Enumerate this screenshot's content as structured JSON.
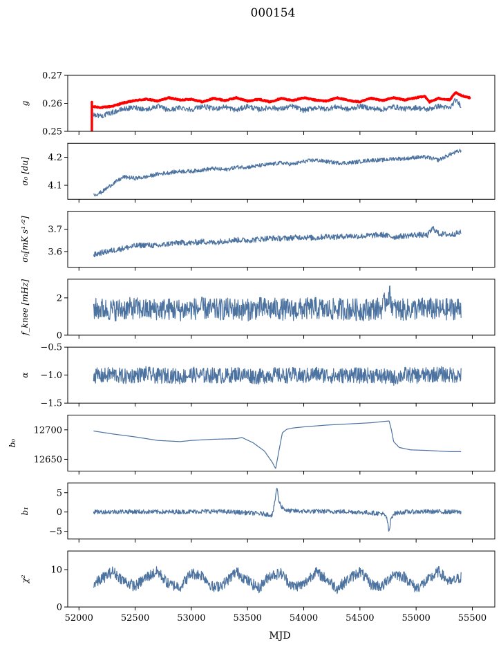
{
  "figure": {
    "title": "000154",
    "xlabel": "MJD",
    "series_color": "#4c72a0",
    "highlight_color": "#ff0000"
  },
  "chart_data": [
    {
      "type": "line",
      "ylabel": "g",
      "ylim": [
        0.25,
        0.27
      ],
      "yticks": [
        0.25,
        0.26,
        0.27
      ],
      "ytick_labels": [
        "0.25",
        "0.26",
        "0.27"
      ],
      "xlim": [
        51900,
        55700
      ],
      "show_x_tick_labels": false,
      "series": [
        {
          "color": "#ff0000",
          "style": "thick",
          "x": [
            52115,
            52130,
            52200,
            52300,
            52400,
            52500,
            52600,
            52700,
            52800,
            52900,
            53000,
            53100,
            53200,
            53300,
            53400,
            53500,
            53600,
            53700,
            53800,
            53900,
            54000,
            54100,
            54200,
            54300,
            54400,
            54500,
            54600,
            54700,
            54800,
            54900,
            55000,
            55080,
            55120,
            55200,
            55300,
            55350,
            55400,
            55480
          ],
          "y": [
            0.259,
            0.2588,
            0.2585,
            0.259,
            0.2602,
            0.261,
            0.2615,
            0.2608,
            0.262,
            0.2612,
            0.2615,
            0.2605,
            0.2618,
            0.261,
            0.262,
            0.2608,
            0.2615,
            0.2605,
            0.2618,
            0.261,
            0.262,
            0.2612,
            0.2608,
            0.262,
            0.261,
            0.2605,
            0.2618,
            0.261,
            0.262,
            0.2612,
            0.262,
            0.2625,
            0.2605,
            0.2618,
            0.2612,
            0.2638,
            0.2628,
            0.262
          ]
        },
        {
          "color": "#4c72a0",
          "x": [
            52130,
            52200,
            52300,
            52400,
            52500,
            52600,
            52700,
            52800,
            52900,
            53000,
            53100,
            53200,
            53300,
            53400,
            53500,
            53600,
            53700,
            53800,
            53900,
            54000,
            54100,
            54200,
            54300,
            54400,
            54500,
            54600,
            54700,
            54800,
            54900,
            55000,
            55100,
            55200,
            55300,
            55350,
            55400
          ],
          "y": [
            0.256,
            0.2555,
            0.2568,
            0.258,
            0.2585,
            0.2578,
            0.259,
            0.2575,
            0.2585,
            0.2578,
            0.259,
            0.258,
            0.2588,
            0.2575,
            0.259,
            0.2578,
            0.2585,
            0.258,
            0.259,
            0.2575,
            0.2585,
            0.258,
            0.2588,
            0.2578,
            0.259,
            0.2582,
            0.2578,
            0.2588,
            0.258,
            0.2585,
            0.2578,
            0.259,
            0.2582,
            0.2612,
            0.2592
          ]
        }
      ]
    },
    {
      "type": "line",
      "ylabel": "σ₀ [du]",
      "ylim": [
        4.05,
        4.25
      ],
      "yticks": [
        4.1,
        4.2
      ],
      "ytick_labels": [
        "4.1",
        "4.2"
      ],
      "xlim": [
        51900,
        55700
      ],
      "show_x_tick_labels": false,
      "series": [
        {
          "color": "#4c72a0",
          "x": [
            52130,
            52200,
            52300,
            52400,
            52500,
            52600,
            52700,
            52800,
            52900,
            53000,
            53100,
            53200,
            53300,
            53400,
            53500,
            53600,
            53700,
            53800,
            53900,
            54000,
            54100,
            54200,
            54300,
            54400,
            54500,
            54600,
            54700,
            54800,
            54900,
            55000,
            55100,
            55200,
            55300,
            55400
          ],
          "y": [
            4.065,
            4.075,
            4.105,
            4.13,
            4.125,
            4.13,
            4.14,
            4.145,
            4.15,
            4.15,
            4.155,
            4.16,
            4.155,
            4.165,
            4.165,
            4.17,
            4.175,
            4.18,
            4.175,
            4.185,
            4.19,
            4.185,
            4.18,
            4.18,
            4.185,
            4.19,
            4.19,
            4.195,
            4.195,
            4.2,
            4.2,
            4.19,
            4.21,
            4.225
          ]
        }
      ]
    },
    {
      "type": "line",
      "ylabel": "σ₀[mK s¹ᐟ²]",
      "ylim": [
        3.53,
        3.78
      ],
      "yticks": [
        3.6,
        3.7
      ],
      "ytick_labels": [
        "3.6",
        "3.7"
      ],
      "xlim": [
        51900,
        55700
      ],
      "show_x_tick_labels": false,
      "series": [
        {
          "color": "#4c72a0",
          "x": [
            52130,
            52200,
            52300,
            52400,
            52500,
            52600,
            52700,
            52800,
            52900,
            53000,
            53100,
            53200,
            53300,
            53400,
            53500,
            53600,
            53700,
            53800,
            53900,
            54000,
            54100,
            54200,
            54300,
            54400,
            54500,
            54600,
            54700,
            54800,
            54900,
            55000,
            55100,
            55150,
            55200,
            55300,
            55400
          ],
          "y": [
            3.585,
            3.595,
            3.605,
            3.615,
            3.625,
            3.63,
            3.625,
            3.635,
            3.64,
            3.638,
            3.645,
            3.64,
            3.648,
            3.652,
            3.65,
            3.655,
            3.66,
            3.658,
            3.662,
            3.665,
            3.66,
            3.668,
            3.665,
            3.67,
            3.668,
            3.672,
            3.675,
            3.665,
            3.67,
            3.675,
            3.672,
            3.705,
            3.68,
            3.675,
            3.685
          ]
        }
      ]
    },
    {
      "type": "line",
      "ylabel": "f_knee [mHz]",
      "ylim": [
        0,
        3
      ],
      "yticks": [
        0,
        2
      ],
      "ytick_labels": [
        "0",
        "2"
      ],
      "xlim": [
        51900,
        55700
      ],
      "show_x_tick_labels": false,
      "series": [
        {
          "color": "#4c72a0",
          "x": [
            52130,
            52200,
            52300,
            52400,
            52500,
            52600,
            52700,
            52800,
            52900,
            53000,
            53100,
            53200,
            53300,
            53400,
            53500,
            53600,
            53700,
            53800,
            53900,
            54000,
            54100,
            54200,
            54300,
            54400,
            54500,
            54600,
            54700,
            54760,
            54800,
            54900,
            55000,
            55100,
            55200,
            55300,
            55400
          ],
          "y": [
            1.4,
            1.4,
            1.35,
            1.4,
            1.45,
            1.35,
            1.4,
            1.4,
            1.35,
            1.4,
            1.45,
            1.35,
            1.4,
            1.4,
            1.35,
            1.45,
            1.4,
            1.4,
            1.35,
            1.4,
            1.45,
            1.35,
            1.4,
            1.4,
            1.35,
            1.4,
            1.45,
            2.2,
            1.4,
            1.35,
            1.4,
            1.45,
            1.35,
            1.4,
            1.45
          ]
        }
      ]
    },
    {
      "type": "line",
      "ylabel": "α",
      "ylim": [
        -1.5,
        -0.5
      ],
      "yticks": [
        -1.5,
        -1.0,
        -0.5
      ],
      "ytick_labels": [
        "−1.5",
        "−1.0",
        "−0.5"
      ],
      "xlim": [
        51900,
        55700
      ],
      "show_x_tick_labels": false,
      "series": [
        {
          "color": "#4c72a0",
          "x": [
            52130,
            52200,
            52300,
            52400,
            52500,
            52600,
            52700,
            52800,
            52900,
            53000,
            53100,
            53200,
            53300,
            53400,
            53500,
            53600,
            53700,
            53800,
            53900,
            54000,
            54100,
            54200,
            54300,
            54400,
            54500,
            54600,
            54700,
            54800,
            54900,
            55000,
            55100,
            55200,
            55300,
            55400
          ],
          "y": [
            -1.0,
            -1.02,
            -0.98,
            -1.03,
            -1.0,
            -0.98,
            -1.02,
            -1.0,
            -1.03,
            -0.99,
            -1.01,
            -1.0,
            -1.02,
            -0.98,
            -1.0,
            -1.03,
            -0.99,
            -1.01,
            -1.0,
            -1.02,
            -0.98,
            -1.0,
            -1.02,
            -0.99,
            -1.01,
            -1.0,
            -1.02,
            -1.05,
            -0.99,
            -1.01,
            -1.0,
            -0.98,
            -1.0,
            -1.0
          ]
        }
      ]
    },
    {
      "type": "line",
      "ylabel": "b₀",
      "ylim": [
        12630,
        12725
      ],
      "yticks": [
        12650,
        12700
      ],
      "ytick_labels": [
        "12650",
        "12700"
      ],
      "xlim": [
        51900,
        55700
      ],
      "show_x_tick_labels": false,
      "series": [
        {
          "color": "#4c72a0",
          "x": [
            52130,
            52300,
            52500,
            52700,
            52900,
            53000,
            53200,
            53400,
            53450,
            53550,
            53650,
            53720,
            53750,
            53780,
            53810,
            53850,
            53900,
            54000,
            54200,
            54400,
            54600,
            54700,
            54760,
            54780,
            54800,
            54850,
            54950,
            55100,
            55300,
            55400
          ],
          "y": [
            12698,
            12693,
            12688,
            12682,
            12680,
            12682,
            12684,
            12685,
            12687,
            12678,
            12664,
            12645,
            12634,
            12665,
            12695,
            12701,
            12703,
            12705,
            12708,
            12710,
            12712,
            12714,
            12715,
            12700,
            12680,
            12670,
            12666,
            12665,
            12663,
            12663
          ]
        }
      ]
    },
    {
      "type": "line",
      "ylabel": "b₁",
      "ylim": [
        -7,
        7.5
      ],
      "yticks": [
        -5,
        0,
        5
      ],
      "ytick_labels": [
        "−5",
        "0",
        "5"
      ],
      "xlim": [
        51900,
        55700
      ],
      "show_x_tick_labels": false,
      "series": [
        {
          "color": "#4c72a0",
          "x": [
            52130,
            52400,
            52800,
            53200,
            53500,
            53650,
            53720,
            53740,
            53760,
            53780,
            53800,
            53850,
            54000,
            54400,
            54700,
            54740,
            54760,
            54775,
            54800,
            54900,
            55100,
            55400
          ],
          "y": [
            0.0,
            0.1,
            0.0,
            0.2,
            -0.2,
            -0.5,
            -0.8,
            2.0,
            6.5,
            2.8,
            1.5,
            0.3,
            0.2,
            0.1,
            -0.4,
            -1.5,
            -5.5,
            -1.8,
            -0.4,
            0.0,
            0.1,
            0.0
          ]
        }
      ]
    },
    {
      "type": "line",
      "ylabel": "χ²",
      "ylim": [
        0,
        15
      ],
      "yticks": [
        0,
        10
      ],
      "ytick_labels": [
        "0",
        "10"
      ],
      "xlim": [
        51900,
        55700
      ],
      "show_x_tick_labels": true,
      "xticks": [
        52000,
        52500,
        53000,
        53500,
        54000,
        54500,
        55000,
        55500
      ],
      "xtick_labels": [
        "52000",
        "52500",
        "53000",
        "53500",
        "54000",
        "54500",
        "55000",
        "55500"
      ],
      "series": [
        {
          "color": "#4c72a0",
          "x": [
            52130,
            52200,
            52300,
            52400,
            52500,
            52600,
            52700,
            52800,
            52900,
            53000,
            53100,
            53200,
            53300,
            53400,
            53500,
            53600,
            53700,
            53800,
            53900,
            54000,
            54100,
            54200,
            54300,
            54400,
            54500,
            54600,
            54700,
            54800,
            54900,
            55000,
            55100,
            55200,
            55300,
            55400
          ],
          "y": [
            6.0,
            7.5,
            9.5,
            7.0,
            5.5,
            8.0,
            9.5,
            6.0,
            5.5,
            9.0,
            8.5,
            5.0,
            6.5,
            9.5,
            7.0,
            5.0,
            8.5,
            9.0,
            5.5,
            6.0,
            9.5,
            7.5,
            5.0,
            7.5,
            9.5,
            6.0,
            5.5,
            9.0,
            8.0,
            5.0,
            7.0,
            9.5,
            6.5,
            8.0
          ]
        }
      ]
    }
  ]
}
